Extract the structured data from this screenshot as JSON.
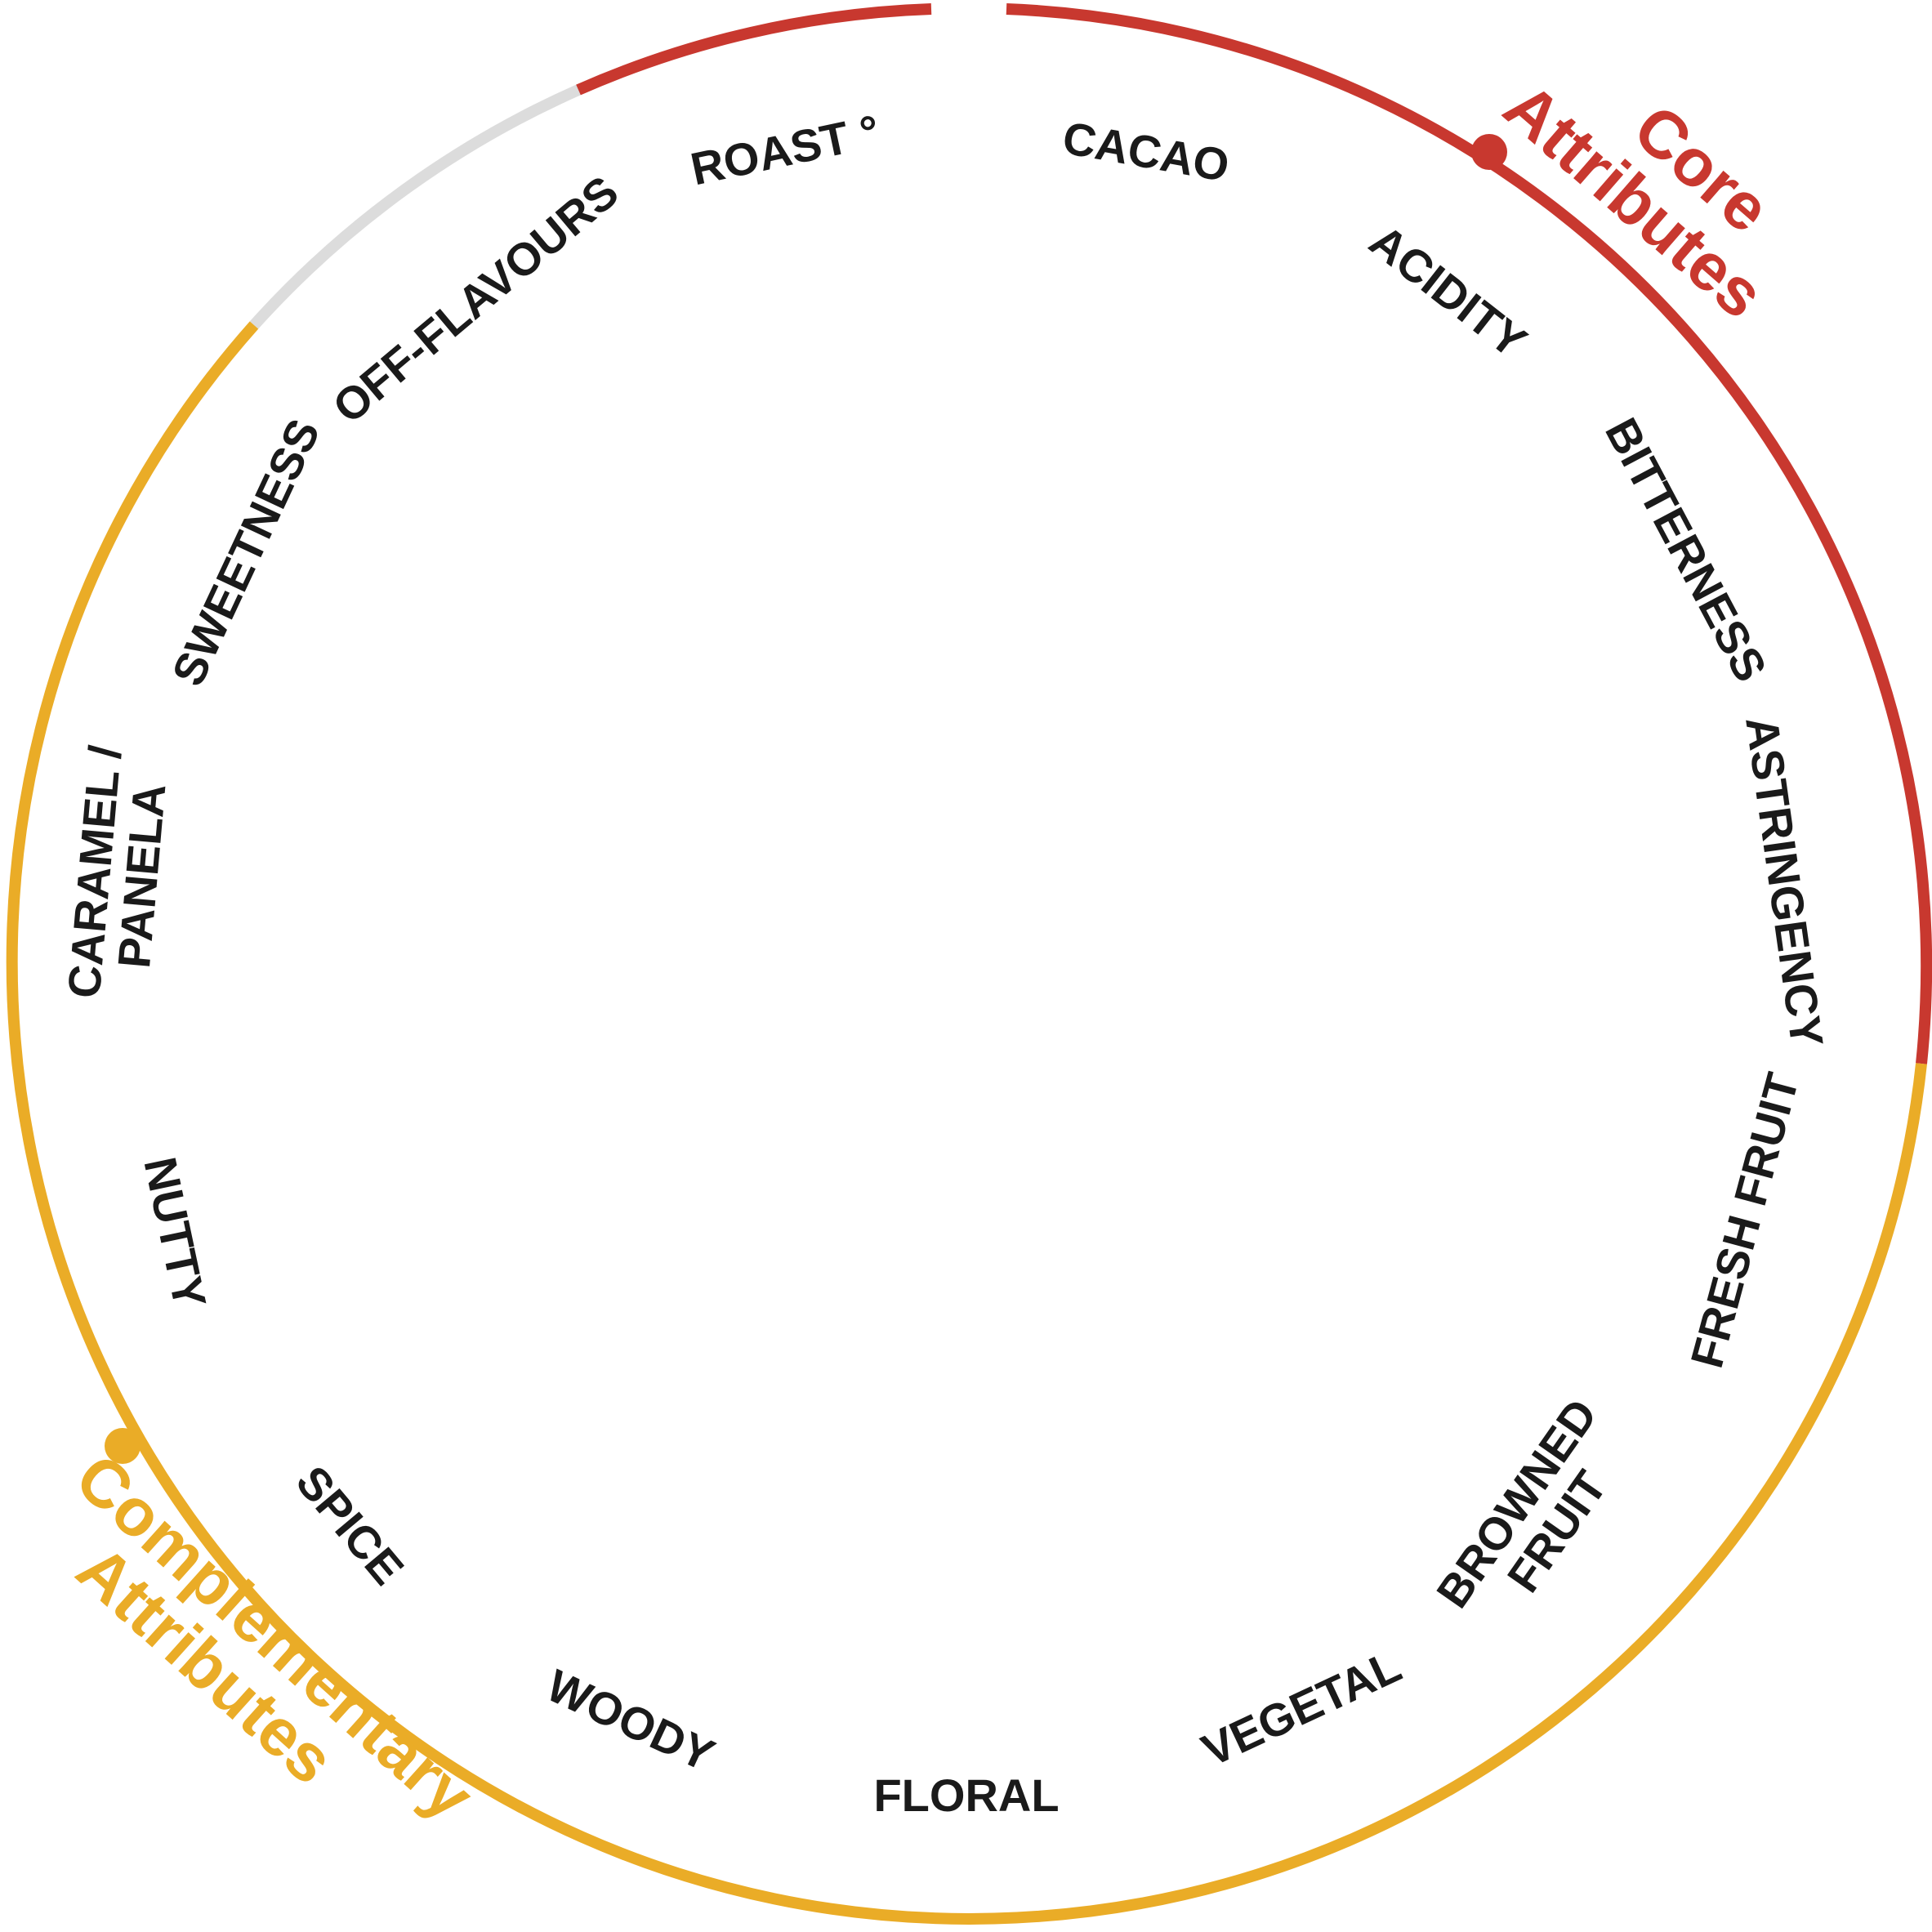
{
  "colors": {
    "core": "#c8382f",
    "complementary": "#eaac27",
    "neutral": "#dcdcdc",
    "text": "#1a1a1a"
  },
  "groups": {
    "core": {
      "line1": "Core",
      "line2": "Attributes"
    },
    "complementary": {
      "line1": "Complementary",
      "line2": "Attributes"
    }
  },
  "attributes": {
    "roast": "ROAST °",
    "cacao": "CACAO",
    "acidity": "ACIDITY",
    "bitterness": "BITTERNESS",
    "astringency": "ASTRINGENCY",
    "fresh_fruit": "FRESH FRUIT",
    "browned_fruit_1": "BROWNED",
    "browned_fruit_2": "FRUIT",
    "vegetal": "VEGETAL",
    "floral": "FLORAL",
    "woody": "WOODY",
    "spice": "SPICE",
    "nutty": "NUTTY",
    "caramel_panela_1": "CARAMEL /",
    "caramel_panela_2": "PANELA",
    "sweetness": "SWEETNESS",
    "off_flavours": "OFF-FLAVOURS"
  }
}
